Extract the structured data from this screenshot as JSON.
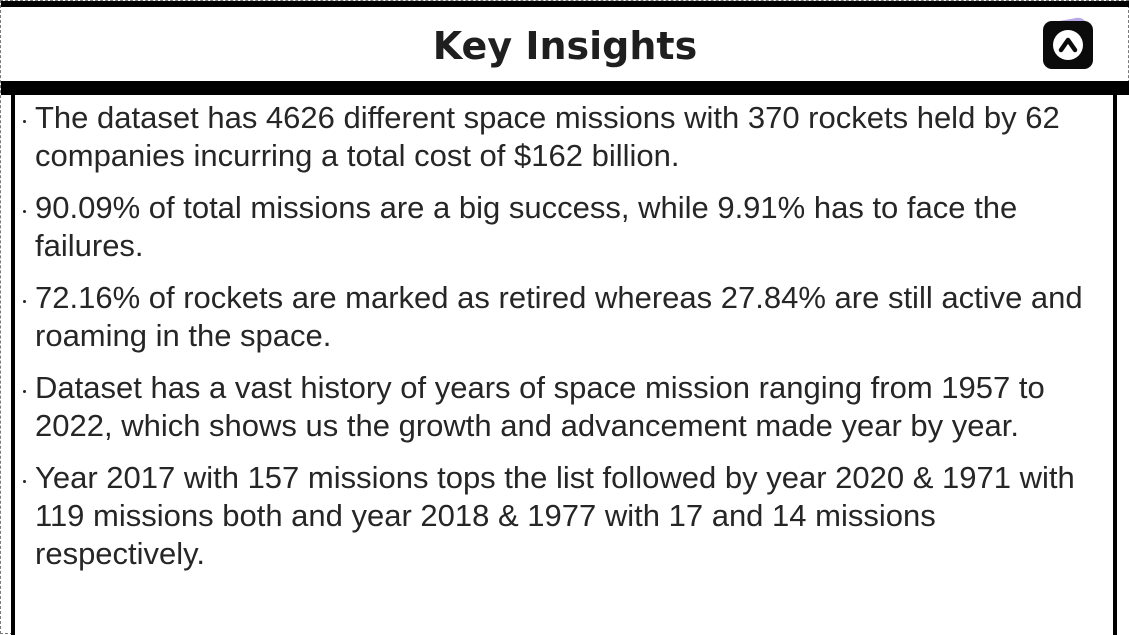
{
  "header": {
    "title": "Key Insights",
    "logo_icon": "caret-up-logo-icon",
    "logo_colors": {
      "badge": "#0b0b0b",
      "glow": "#b9a7e6",
      "glyph": "#ffffff"
    }
  },
  "insights": [
    "The dataset has 4626 different space missions with 370 rockets held by 62 companies incurring a total cost of $162 billion.",
    "90.09% of total missions are a big success, while 9.91% has to face the failures.",
    "72.16% of rockets are marked as retired whereas 27.84% are still active and roaming in the space.",
    "Dataset has a vast history of years of space mission ranging from 1957 to 2022, which shows us the growth and advancement made year by year.",
    "Year 2017 with 157 missions tops the list followed by year 2020 & 1971 with 119 missions both and year 2018 & 1977 with 17 and 14 missions respectively."
  ],
  "colors": {
    "frame": "#000000",
    "text": "#262626",
    "title": "#1f1f1f",
    "background": "#ffffff"
  }
}
